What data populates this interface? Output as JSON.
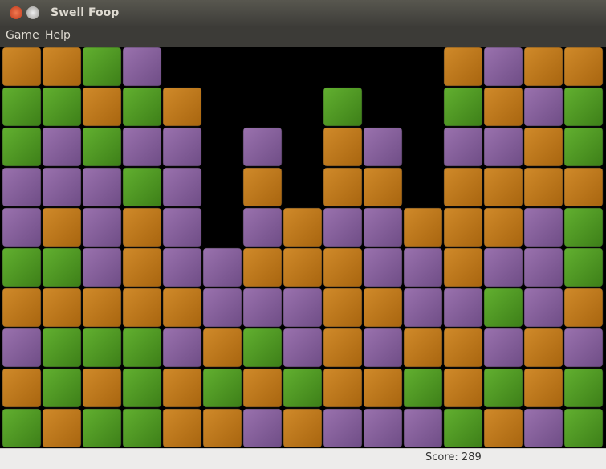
{
  "window": {
    "title": "Swell Foop"
  },
  "menu": [
    "Game",
    "Help"
  ],
  "board": {
    "palette": {
      "orange": [
        "#d08a2a",
        "#a8650f"
      ],
      "green": [
        "#62b030",
        "#3d7f18"
      ],
      "purple": [
        "#9a72ae",
        "#6f4d86"
      ]
    },
    "rows": [
      [
        "orange",
        "orange",
        "green",
        "purple",
        null,
        null,
        null,
        null,
        null,
        null,
        null,
        "orange",
        "purple",
        "orange",
        "orange"
      ],
      [
        "green",
        "green",
        "orange",
        "green",
        "orange",
        null,
        null,
        null,
        "green",
        null,
        null,
        "green",
        "orange",
        "purple",
        "green"
      ],
      [
        "green",
        "purple",
        "green",
        "purple",
        "purple",
        null,
        "purple",
        null,
        "orange",
        "purple",
        null,
        "purple",
        "purple",
        "orange",
        "green"
      ],
      [
        "purple",
        "purple",
        "purple",
        "green",
        "purple",
        null,
        "orange",
        null,
        "orange",
        "orange",
        null,
        "orange",
        "orange",
        "orange",
        "orange"
      ],
      [
        "purple",
        "orange",
        "purple",
        "orange",
        "purple",
        null,
        "purple",
        "orange",
        "purple",
        "purple",
        "orange",
        "orange",
        "orange",
        "purple",
        "green"
      ],
      [
        "green",
        "green",
        "purple",
        "orange",
        "purple",
        "purple",
        "orange",
        "orange",
        "orange",
        "purple",
        "purple",
        "orange",
        "purple",
        "purple",
        "green"
      ],
      [
        "orange",
        "orange",
        "orange",
        "orange",
        "orange",
        "purple",
        "purple",
        "purple",
        "orange",
        "orange",
        "purple",
        "purple",
        "green",
        "purple",
        "orange"
      ],
      [
        "purple",
        "green",
        "green",
        "green",
        "purple",
        "orange",
        "green",
        "purple",
        "orange",
        "purple",
        "orange",
        "orange",
        "purple",
        "orange",
        "purple"
      ],
      [
        "orange",
        "green",
        "orange",
        "green",
        "orange",
        "green",
        "orange",
        "green",
        "orange",
        "orange",
        "green",
        "orange",
        "green",
        "orange",
        "green"
      ],
      [
        "green",
        "orange",
        "green",
        "green",
        "orange",
        "orange",
        "purple",
        "orange",
        "purple",
        "purple",
        "purple",
        "green",
        "orange",
        "purple",
        "green"
      ]
    ]
  },
  "status": {
    "score": "Score: 289"
  }
}
